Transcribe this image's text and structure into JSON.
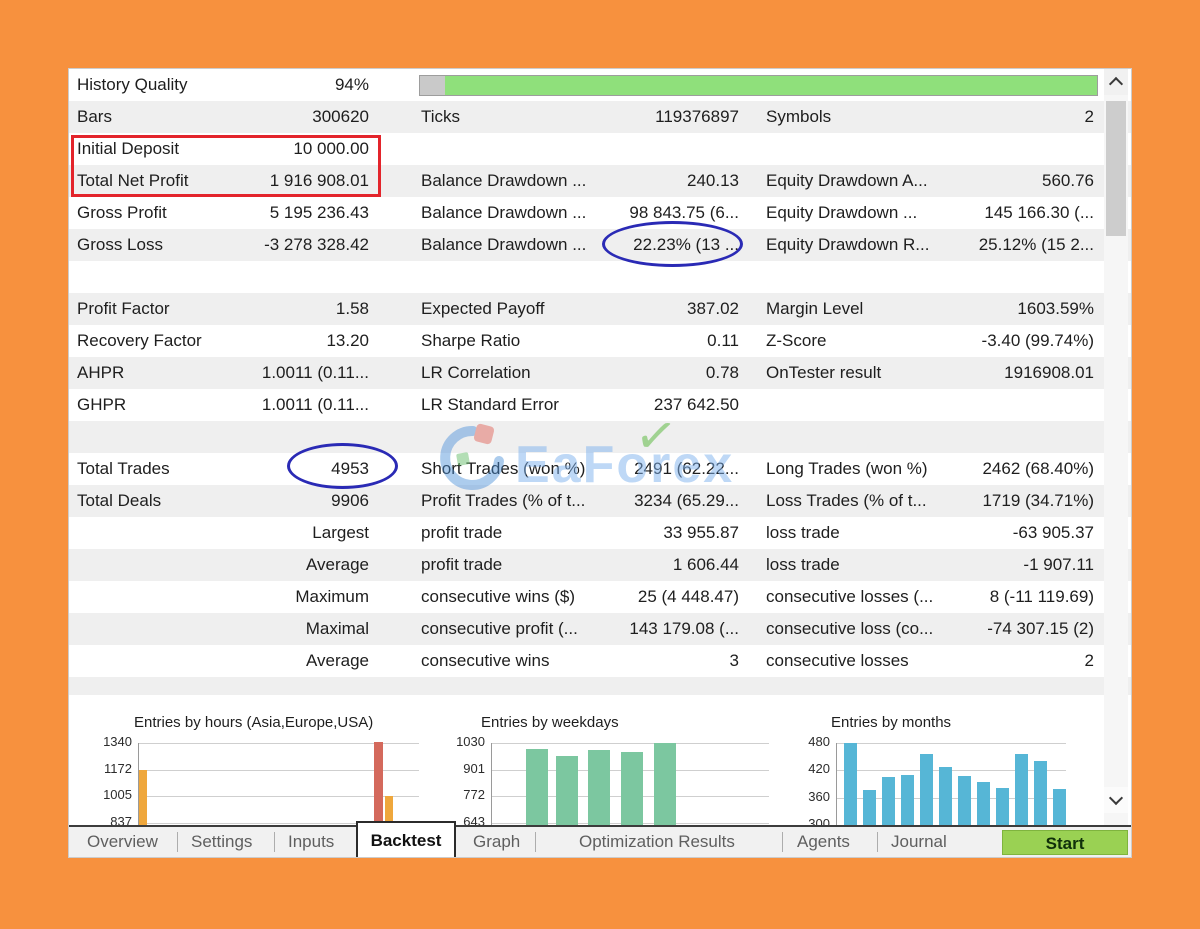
{
  "table": {
    "rows": [
      {
        "c1l": "History Quality",
        "c1v": "94%"
      },
      {
        "c1l": "Bars",
        "c1v": "300620",
        "c2l": "Ticks",
        "c2v": "119376897",
        "c3l": "Symbols",
        "c3v": "2"
      },
      {
        "c1l": "Initial Deposit",
        "c1v": "10 000.00"
      },
      {
        "c1l": "Total Net Profit",
        "c1v": "1 916 908.01",
        "c2l": "Balance Drawdown ...",
        "c2v": "240.13",
        "c3l": "Equity Drawdown A...",
        "c3v": "560.76"
      },
      {
        "c1l": "Gross Profit",
        "c1v": "5 195 236.43",
        "c2l": "Balance Drawdown ...",
        "c2v": "98 843.75 (6...",
        "c3l": "Equity Drawdown ...",
        "c3v": "145 166.30 (..."
      },
      {
        "c1l": "Gross Loss",
        "c1v": "-3 278 328.42",
        "c2l": "Balance Drawdown ...",
        "c2v": "22.23% (13 ...",
        "c3l": "Equity Drawdown R...",
        "c3v": "25.12% (15 2..."
      },
      {},
      {
        "c1l": "Profit Factor",
        "c1v": "1.58",
        "c2l": "Expected Payoff",
        "c2v": "387.02",
        "c3l": "Margin Level",
        "c3v": "1603.59%"
      },
      {
        "c1l": "Recovery Factor",
        "c1v": "13.20",
        "c2l": "Sharpe Ratio",
        "c2v": "0.11",
        "c3l": "Z-Score",
        "c3v": "-3.40 (99.74%)"
      },
      {
        "c1l": "AHPR",
        "c1v": "1.0011 (0.11...",
        "c2l": "LR Correlation",
        "c2v": "0.78",
        "c3l": "OnTester result",
        "c3v": "1916908.01"
      },
      {
        "c1l": "GHPR",
        "c1v": "1.0011 (0.11...",
        "c2l": "LR Standard Error",
        "c2v": "237 642.50"
      },
      {},
      {
        "c1l": "Total Trades",
        "c1v": "4953",
        "c2l": "Short Trades (won %)",
        "c2v": "2491 (62.22...",
        "c3l": "Long Trades (won %)",
        "c3v": "2462 (68.40%)"
      },
      {
        "c1l": "Total Deals",
        "c1v": "9906",
        "c2l": "Profit Trades (% of t...",
        "c2v": "3234 (65.29...",
        "c3l": "Loss Trades (% of t...",
        "c3v": "1719 (34.71%)"
      },
      {
        "c1v": "Largest",
        "c2l": "profit trade",
        "c2v": "33 955.87",
        "c3l": "loss trade",
        "c3v": "-63 905.37"
      },
      {
        "c1v": "Average",
        "c2l": "profit trade",
        "c2v": "1 606.44",
        "c3l": "loss trade",
        "c3v": "-1 907.11"
      },
      {
        "c1v": "Maximum",
        "c2l": "consecutive wins ($)",
        "c2v": "25 (4 448.47)",
        "c3l": "consecutive losses (...",
        "c3v": "8 (-11 119.69)"
      },
      {
        "c1v": "Maximal",
        "c2l": "consecutive profit (...",
        "c2v": "143 179.08 (...",
        "c3l": "consecutive loss (co...",
        "c3v": "-74 307.15 (2)"
      },
      {
        "c1v": "Average",
        "c2l": "consecutive wins",
        "c2v": "3",
        "c3l": "consecutive losses",
        "c3v": "2"
      }
    ]
  },
  "chart_data": [
    {
      "type": "bar",
      "title": "Entries by hours (Asia,Europe,USA)",
      "ylim": [
        837,
        1340
      ],
      "yticks": [
        1340,
        1172,
        1005,
        837
      ],
      "bars": [
        {
          "value": 1172,
          "color": "#EFA73C"
        },
        {
          "value": 1345,
          "color": "#D4695C"
        },
        {
          "value": 1005,
          "color": "#EFA73C"
        }
      ]
    },
    {
      "type": "bar",
      "title": "Entries by weekdays",
      "ylim": [
        643,
        1030
      ],
      "yticks": [
        1030,
        901,
        772,
        643
      ],
      "values": [
        1003,
        968,
        995,
        985,
        1030
      ],
      "bar_color": "#7CC7A0"
    },
    {
      "type": "bar",
      "title": "Entries by months",
      "ylim": [
        300,
        480
      ],
      "yticks": [
        480,
        420,
        360,
        300
      ],
      "values": [
        480,
        378,
        406,
        410,
        456,
        428,
        408,
        395,
        382,
        456,
        441,
        380
      ],
      "bar_color": "#56B6D6"
    }
  ],
  "tabs": {
    "items": [
      "Overview",
      "Settings",
      "Inputs",
      "Backtest",
      "Graph",
      "Optimization Results",
      "Agents",
      "Journal"
    ],
    "active": "Backtest",
    "start_label": "Start"
  },
  "watermark": {
    "text": "EaForex",
    "check": "✓"
  },
  "colors": {
    "frame_orange": "#F7913E",
    "row_stripe": "#EFEFEF",
    "progress_green": "#8FE07B",
    "annotation_red": "#E3242B",
    "annotation_blue": "#2A2AB5",
    "start_button_green": "#9AD153",
    "bar_orange": "#EFA73C",
    "bar_red": "#D4695C",
    "bar_green": "#7CC7A0",
    "bar_blue": "#56B6D6"
  }
}
